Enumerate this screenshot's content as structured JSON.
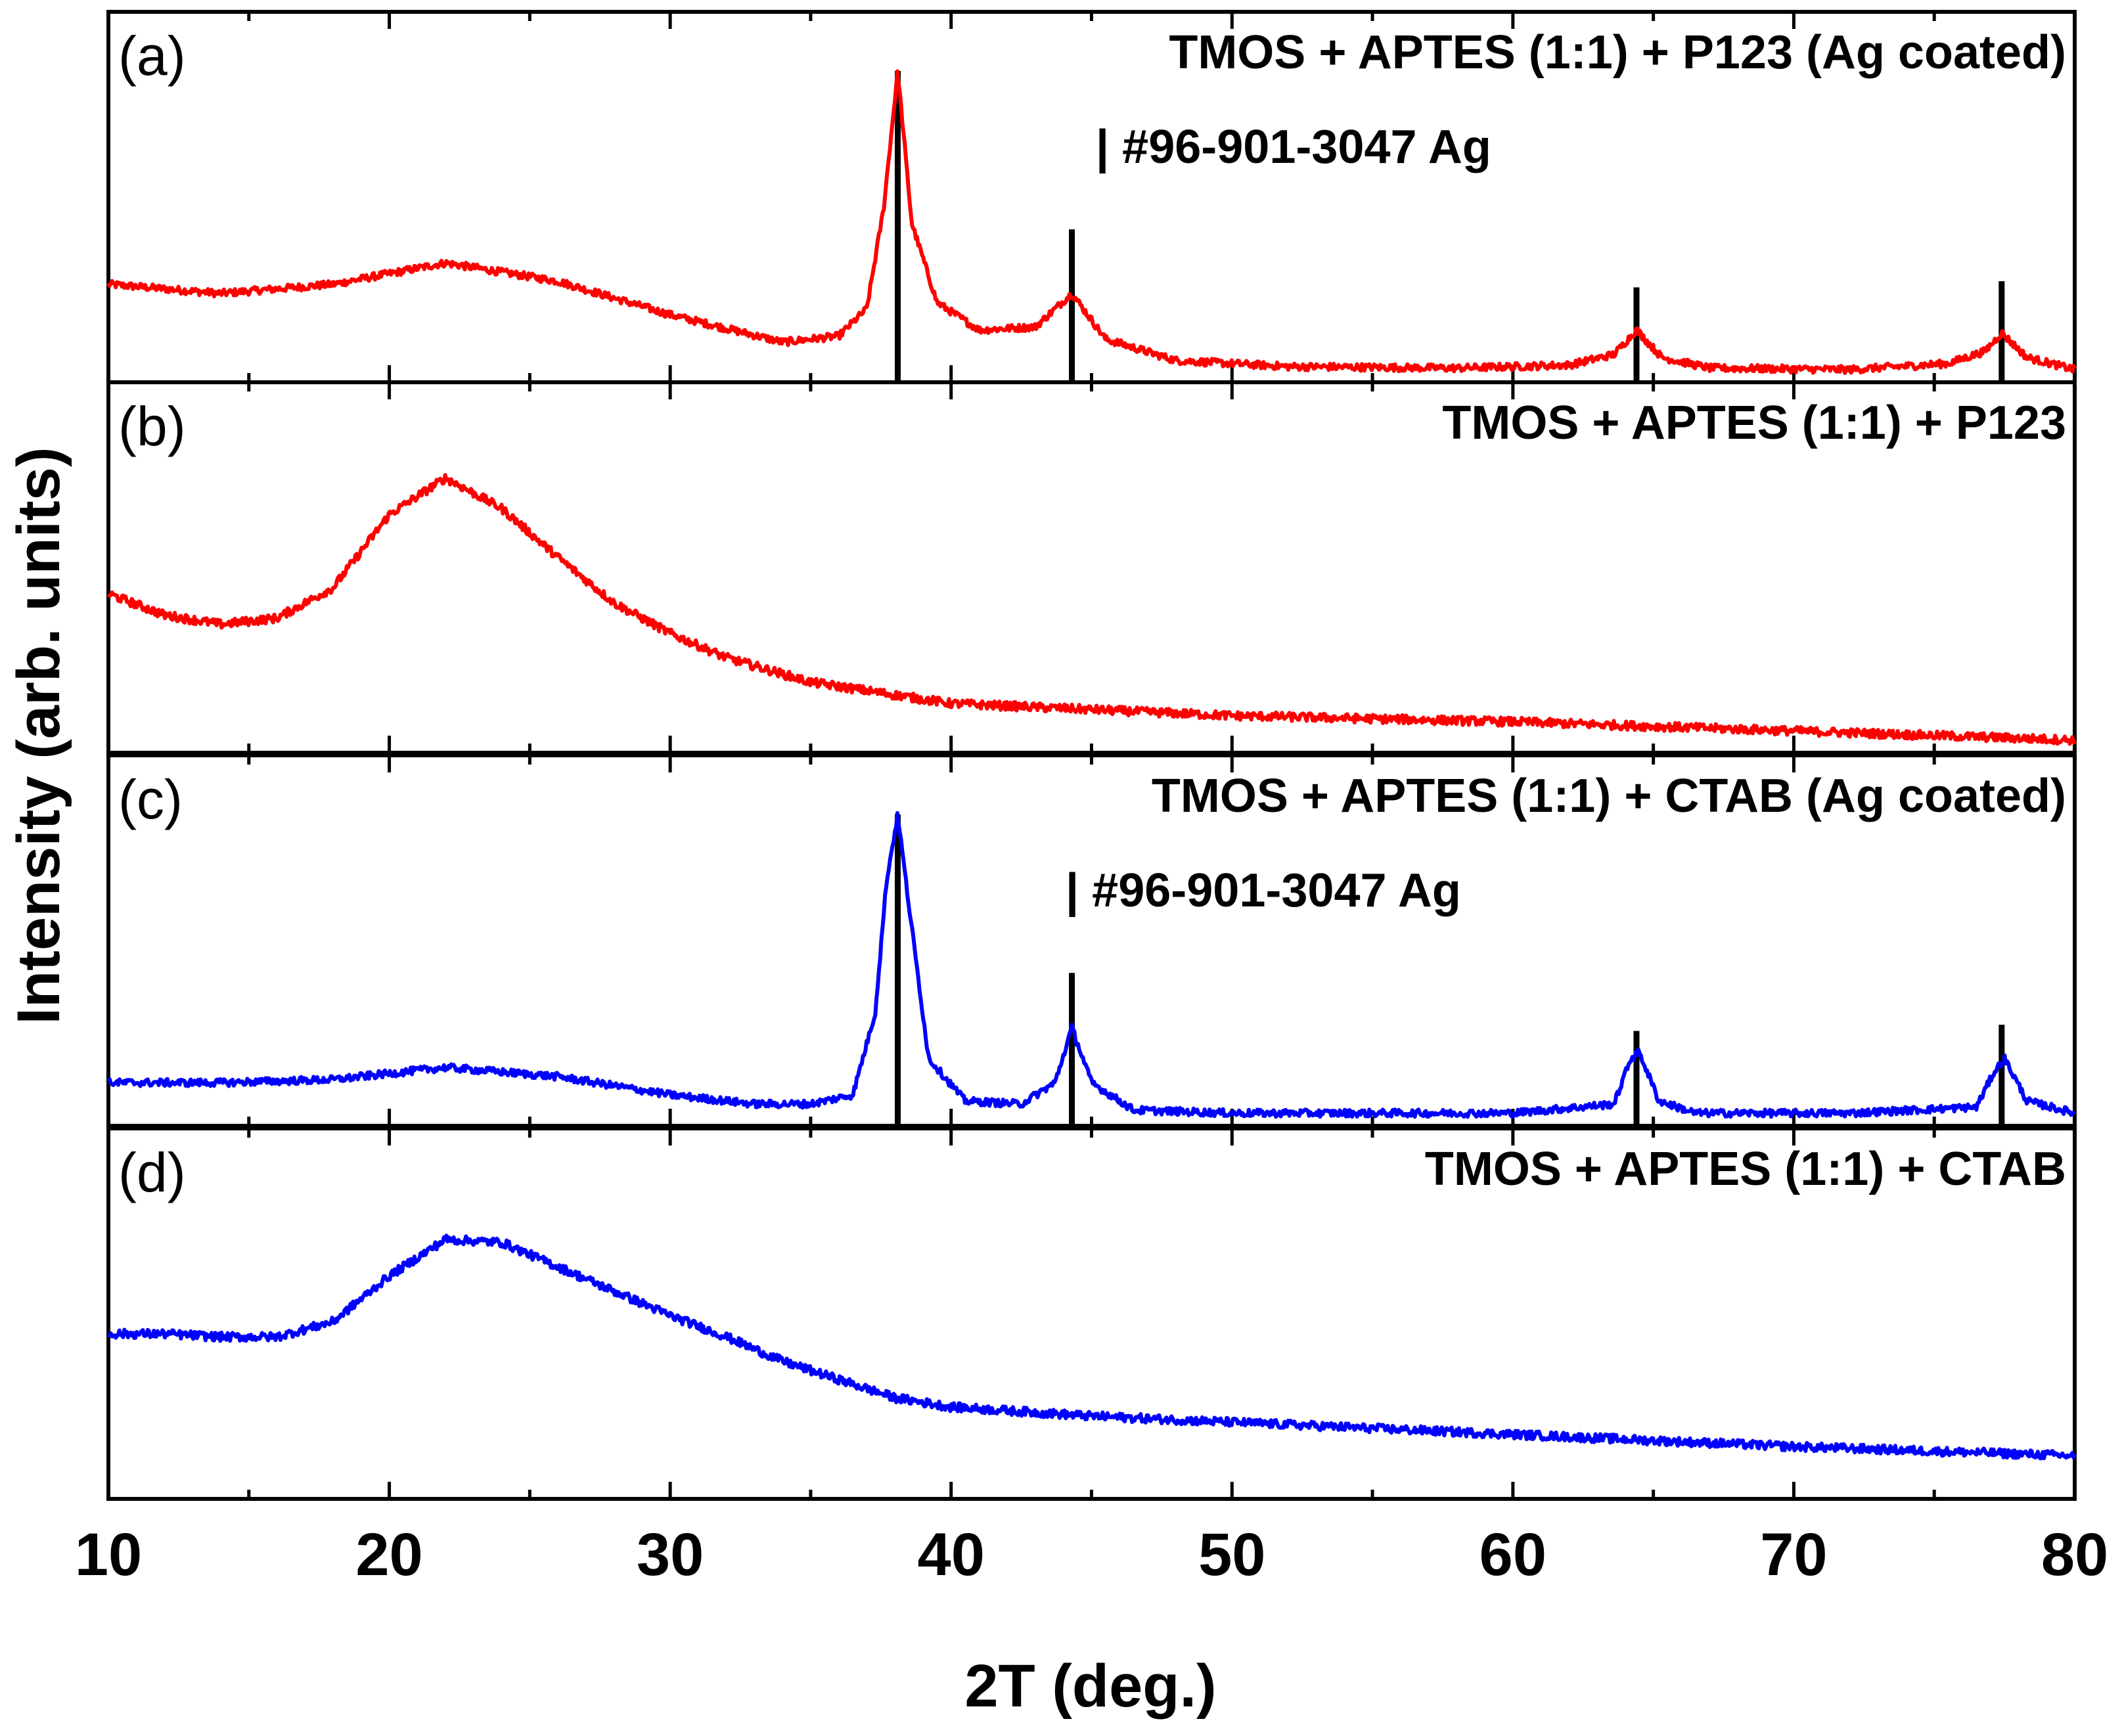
{
  "chart_data": {
    "type": "line",
    "xlabel": "2T (deg.)",
    "ylabel": "Intensity (arb. units)",
    "xlim": [
      10,
      80
    ],
    "xticks": [
      10,
      20,
      30,
      40,
      50,
      60,
      70,
      80
    ],
    "xtick_labels": [
      "10",
      "20",
      "30",
      "40",
      "50",
      "60",
      "70",
      "80"
    ],
    "reference": {
      "label": "| #96-901-3047 Ag",
      "peaks": [
        {
          "x": 38.1,
          "height": 1.0
        },
        {
          "x": 44.3,
          "height": 0.48
        },
        {
          "x": 64.4,
          "height": 0.29
        },
        {
          "x": 77.4,
          "height": 0.31
        }
      ]
    },
    "panels": [
      {
        "letter": "(a)",
        "label": "TMOS + APTES (1:1) + P123 (Ag coated)",
        "color": "#ff0000",
        "show_reference": true,
        "series": {
          "x": [
            10,
            14,
            18,
            22,
            26,
            30,
            34,
            36,
            37,
            37.6,
            38.1,
            38.6,
            39.5,
            41,
            43,
            44.3,
            45.5,
            48,
            52,
            58,
            62,
            63.6,
            64.4,
            65.3,
            67,
            72,
            75.5,
            76.8,
            77.4,
            78.3,
            80
          ],
          "y": [
            0.3,
            0.27,
            0.3,
            0.37,
            0.31,
            0.2,
            0.11,
            0.13,
            0.22,
            0.55,
            1.0,
            0.5,
            0.24,
            0.15,
            0.16,
            0.27,
            0.12,
            0.05,
            0.03,
            0.025,
            0.035,
            0.07,
            0.15,
            0.06,
            0.025,
            0.02,
            0.04,
            0.08,
            0.14,
            0.06,
            0.02
          ]
        }
      },
      {
        "letter": "(b)",
        "label": "TMOS + APTES (1:1) + P123",
        "color": "#ff0000",
        "show_reference": false,
        "series": {
          "x": [
            10,
            12,
            14,
            16,
            18,
            20,
            22,
            24,
            26,
            28,
            30,
            32,
            35,
            40,
            45,
            50,
            60,
            70,
            80
          ],
          "y": [
            0.5,
            0.43,
            0.4,
            0.42,
            0.52,
            0.76,
            0.88,
            0.78,
            0.62,
            0.47,
            0.37,
            0.29,
            0.21,
            0.14,
            0.12,
            0.1,
            0.08,
            0.05,
            0.02
          ]
        }
      },
      {
        "letter": "(c)",
        "label": "TMOS + APTES (1:1) + CTAB (Ag coated)",
        "color": "#0000ff",
        "show_reference": true,
        "series": {
          "x": [
            10,
            14,
            18,
            22,
            26,
            30,
            33,
            35,
            36.5,
            37.3,
            37.7,
            38.1,
            38.5,
            39.2,
            40.5,
            42.5,
            43.7,
            44.3,
            45,
            46.5,
            50,
            60,
            63.6,
            64.2,
            64.5,
            65.2,
            66.5,
            72,
            76.5,
            77.1,
            77.5,
            78.3,
            80
          ],
          "y": [
            0.12,
            0.12,
            0.13,
            0.17,
            0.14,
            0.08,
            0.05,
            0.05,
            0.08,
            0.35,
            0.78,
            1.0,
            0.7,
            0.2,
            0.06,
            0.05,
            0.12,
            0.3,
            0.12,
            0.03,
            0.02,
            0.02,
            0.05,
            0.2,
            0.22,
            0.06,
            0.02,
            0.02,
            0.04,
            0.15,
            0.2,
            0.06,
            0.02
          ]
        }
      },
      {
        "letter": "(d)",
        "label": "TMOS + APTES (1:1) + CTAB",
        "color": "#0000ff",
        "show_reference": false,
        "series": {
          "x": [
            10,
            12,
            14,
            16,
            18,
            20,
            22,
            24,
            26,
            28,
            30,
            32,
            34,
            36,
            38,
            40,
            45,
            50,
            60,
            70,
            80
          ],
          "y": [
            0.52,
            0.52,
            0.51,
            0.51,
            0.56,
            0.71,
            0.83,
            0.82,
            0.74,
            0.66,
            0.58,
            0.51,
            0.43,
            0.37,
            0.31,
            0.28,
            0.25,
            0.23,
            0.19,
            0.15,
            0.12
          ]
        }
      }
    ]
  }
}
